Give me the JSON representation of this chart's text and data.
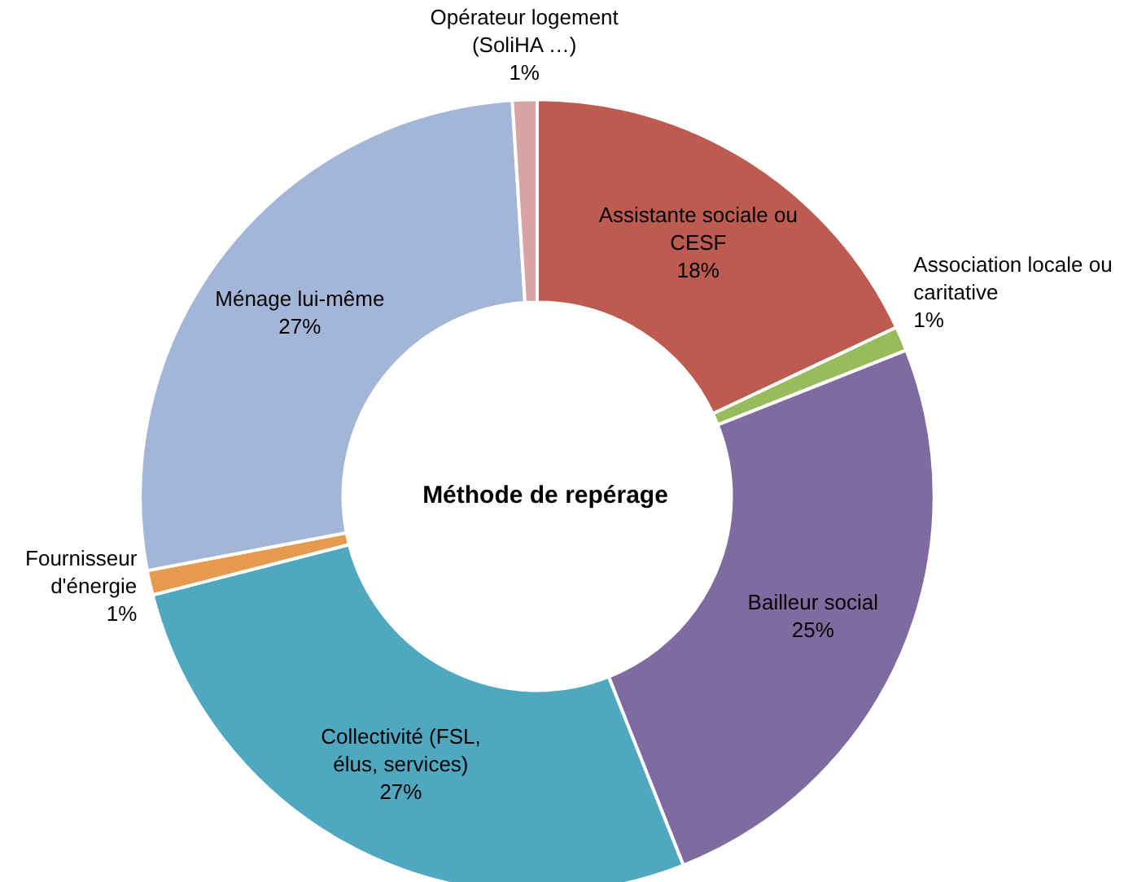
{
  "chart_data": {
    "type": "donut",
    "title": "Méthode de repérage",
    "categories": [
      "Assistante sociale ou CESF",
      "Association locale ou caritative",
      "Bailleur social",
      "Collectivité (FSL, élus, services)",
      "Fournisseur d'énergie",
      "Ménage lui-même",
      "Opérateur logement (SoliHA …)"
    ],
    "values": [
      18,
      1,
      25,
      27,
      1,
      27,
      1
    ],
    "value_labels": [
      "18%",
      "1%",
      "25%",
      "27%",
      "1%",
      "27%",
      "1%"
    ],
    "colors": [
      "#be5b50",
      "#98bb5c",
      "#806ba0",
      "#4fa8c0",
      "#e59a4e",
      "#a4b6d8",
      "#d9a3a3"
    ],
    "legend": false
  }
}
